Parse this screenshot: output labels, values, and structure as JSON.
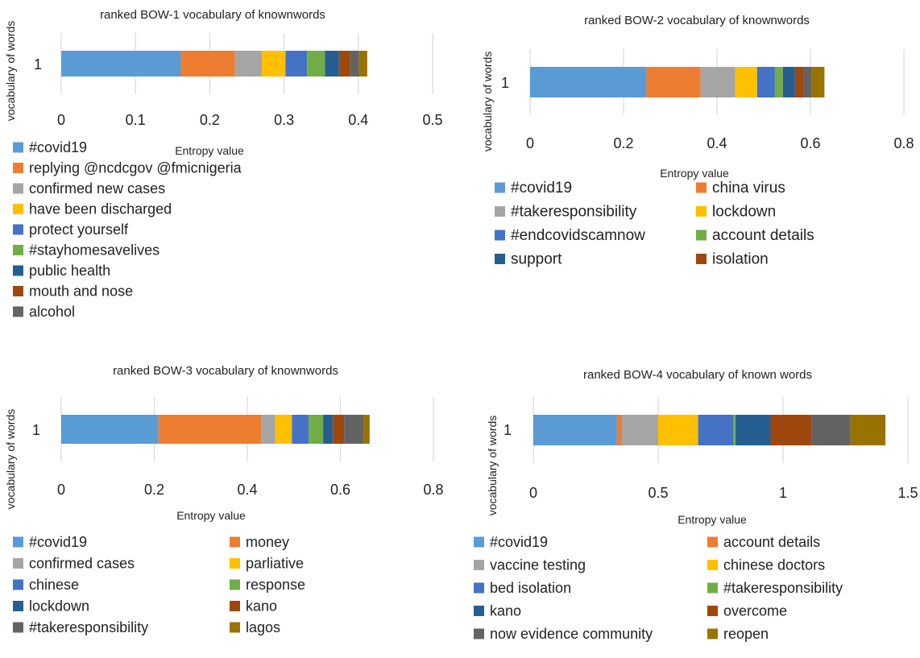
{
  "colors": {
    "blue": "#5B9BD5",
    "orange": "#ED7D31",
    "gray": "#A5A5A5",
    "yellow": "#FFC000",
    "darkblue": "#4472C4",
    "green": "#70AD47",
    "navy": "#255E91",
    "rust": "#9E480E",
    "darkgray": "#636363",
    "olive": "#997300",
    "gridline": "#D9D9D9",
    "text": "#222222"
  },
  "chart_data": [
    {
      "type": "bar",
      "orientation": "horizontal",
      "stacked": true,
      "title": "ranked BOW-1 vocabulary of knownwords",
      "xlabel": "Entropy value",
      "ylabel": "vocabulary of words",
      "categories": [
        "1"
      ],
      "xlim": [
        0,
        0.5
      ],
      "xticks": [
        0,
        0.1,
        0.2,
        0.3,
        0.4,
        0.5
      ],
      "xtick_labels": [
        "0",
        "0.1",
        "0.2",
        "0.3",
        "0.4",
        "0.5"
      ],
      "grid": true,
      "legend_position": "bottom",
      "legend_columns": 1,
      "series": [
        {
          "name": "#covid19",
          "values": [
            0.161
          ],
          "color": "blue"
        },
        {
          "name": "replying @ncdcgov @fmicnigeria",
          "values": [
            0.073
          ],
          "color": "orange"
        },
        {
          "name": "confirmed new cases",
          "values": [
            0.036
          ],
          "color": "gray"
        },
        {
          "name": "have been discharged",
          "values": [
            0.032
          ],
          "color": "yellow"
        },
        {
          "name": "protect yourself",
          "values": [
            0.029
          ],
          "color": "darkblue"
        },
        {
          "name": "#stayhomesavelives",
          "values": [
            0.024
          ],
          "color": "green"
        },
        {
          "name": "public health",
          "values": [
            0.019
          ],
          "color": "navy"
        },
        {
          "name": "mouth and nose",
          "values": [
            0.015
          ],
          "color": "rust"
        },
        {
          "name": "alcohol",
          "values": [
            0.012
          ],
          "color": "darkgray"
        },
        {
          "values": [
            0.011
          ],
          "color": "olive"
        }
      ]
    },
    {
      "type": "bar",
      "orientation": "horizontal",
      "stacked": true,
      "title": "ranked BOW-2 vocabulary of knownwords",
      "xlabel": "Entropy value",
      "ylabel": "vocabulary of words",
      "categories": [
        "1"
      ],
      "xlim": [
        0,
        0.8
      ],
      "xticks": [
        0,
        0.2,
        0.4,
        0.6,
        0.8
      ],
      "xtick_labels": [
        "0",
        "0.2",
        "0.4",
        "0.6",
        "0.8"
      ],
      "grid": true,
      "legend_position": "bottom",
      "legend_columns": 2,
      "series": [
        {
          "name": "#covid19",
          "values": [
            0.249
          ],
          "color": "blue"
        },
        {
          "name": "china virus",
          "values": [
            0.116
          ],
          "color": "orange"
        },
        {
          "name": "#takeresponsibility",
          "values": [
            0.074
          ],
          "color": "gray"
        },
        {
          "name": "lockdown",
          "values": [
            0.047
          ],
          "color": "yellow"
        },
        {
          "name": "#endcovidscamnow",
          "values": [
            0.038
          ],
          "color": "darkblue"
        },
        {
          "name": "account details",
          "values": [
            0.017
          ],
          "color": "green"
        },
        {
          "name": "support",
          "values": [
            0.026
          ],
          "color": "navy"
        },
        {
          "name": "isolation",
          "values": [
            0.019
          ],
          "color": "rust"
        },
        {
          "values": [
            0.017
          ],
          "color": "darkgray"
        },
        {
          "values": [
            0.027
          ],
          "color": "olive"
        }
      ]
    },
    {
      "type": "bar",
      "orientation": "horizontal",
      "stacked": true,
      "title": "ranked BOW-3 vocabulary of knownwords",
      "xlabel": "Entropy value",
      "ylabel": "vocabulary of words",
      "categories": [
        "1"
      ],
      "xlim": [
        0,
        0.8
      ],
      "xticks": [
        0,
        0.2,
        0.4,
        0.6,
        0.8
      ],
      "xtick_labels": [
        "0",
        "0.2",
        "0.4",
        "0.6",
        "0.8"
      ],
      "grid": true,
      "legend_position": "bottom",
      "legend_columns": 2,
      "series": [
        {
          "name": "#covid19",
          "values": [
            0.209
          ],
          "color": "blue"
        },
        {
          "name": "money",
          "values": [
            0.221
          ],
          "color": "orange"
        },
        {
          "name": "confirmed cases",
          "values": [
            0.03
          ],
          "color": "gray"
        },
        {
          "name": "parliative",
          "values": [
            0.036
          ],
          "color": "yellow"
        },
        {
          "name": "chinese",
          "values": [
            0.036
          ],
          "color": "darkblue"
        },
        {
          "name": "response",
          "values": [
            0.031
          ],
          "color": "green"
        },
        {
          "name": "lockdown",
          "values": [
            0.021
          ],
          "color": "navy"
        },
        {
          "name": "kano",
          "values": [
            0.024
          ],
          "color": "rust"
        },
        {
          "name": "#takeresponsibility",
          "values": [
            0.042
          ],
          "color": "darkgray"
        },
        {
          "name": "lagos",
          "values": [
            0.013
          ],
          "color": "olive"
        }
      ]
    },
    {
      "type": "bar",
      "orientation": "horizontal",
      "stacked": true,
      "title": "ranked BOW-4 vocabulary of known words",
      "xlabel": "Entropy value",
      "ylabel": "vocabulary of words",
      "categories": [
        "1"
      ],
      "xlim": [
        0,
        1.5
      ],
      "xticks": [
        0,
        0.5,
        1,
        1.5
      ],
      "xtick_labels": [
        "0",
        "0.5",
        "1",
        "1.5"
      ],
      "grid": true,
      "legend_position": "bottom",
      "legend_columns": 2,
      "series": [
        {
          "name": "#covid19",
          "values": [
            0.335
          ],
          "color": "blue"
        },
        {
          "name": "account details",
          "values": [
            0.02
          ],
          "color": "orange"
        },
        {
          "name": "vaccine testing",
          "values": [
            0.145
          ],
          "color": "gray"
        },
        {
          "name": "chinese doctors",
          "values": [
            0.16
          ],
          "color": "yellow"
        },
        {
          "name": "bed isolation",
          "values": [
            0.14
          ],
          "color": "darkblue"
        },
        {
          "name": "#takeresponsibility",
          "values": [
            0.01
          ],
          "color": "green"
        },
        {
          "name": "kano",
          "values": [
            0.14
          ],
          "color": "navy"
        },
        {
          "name": "overcome",
          "values": [
            0.165
          ],
          "color": "rust"
        },
        {
          "name": "now evidence community",
          "values": [
            0.155
          ],
          "color": "darkgray"
        },
        {
          "name": "reopen",
          "values": [
            0.14
          ],
          "color": "olive"
        }
      ]
    }
  ]
}
